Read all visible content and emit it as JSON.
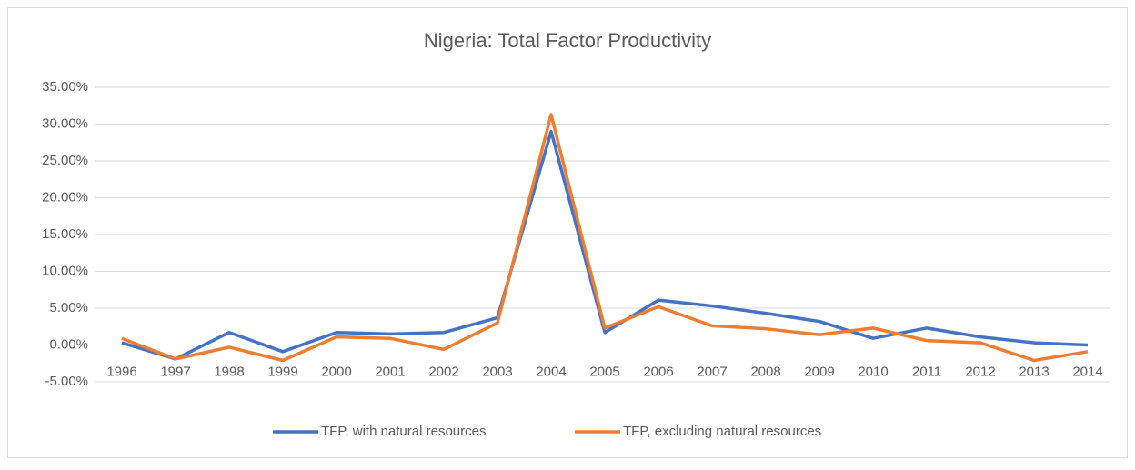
{
  "chart_data": {
    "type": "line",
    "title": "Nigeria: Total Factor Productivity",
    "categories": [
      "1996",
      "1997",
      "1998",
      "1999",
      "2000",
      "2001",
      "2002",
      "2003",
      "2004",
      "2005",
      "2006",
      "2007",
      "2008",
      "2009",
      "2010",
      "2011",
      "2012",
      "2013",
      "2014"
    ],
    "series": [
      {
        "name": "TFP, with natural resources",
        "color": "#4472c4",
        "values": [
          0.3,
          -1.9,
          1.7,
          -0.9,
          1.7,
          1.5,
          1.7,
          3.7,
          29.0,
          1.7,
          6.1,
          5.3,
          4.3,
          3.2,
          0.9,
          2.3,
          1.1,
          0.3,
          0.0
        ]
      },
      {
        "name": "TFP, excluding natural resources",
        "color": "#ed7d31",
        "values": [
          0.9,
          -1.9,
          -0.3,
          -2.1,
          1.1,
          0.9,
          -0.6,
          3.0,
          31.3,
          2.3,
          5.2,
          2.6,
          2.2,
          1.4,
          2.3,
          0.6,
          0.3,
          -2.1,
          -0.9
        ]
      }
    ],
    "ylim": [
      -5,
      35
    ],
    "yticks": [
      {
        "value": -5,
        "label": "-5.00%"
      },
      {
        "value": 0,
        "label": "0.00%"
      },
      {
        "value": 5,
        "label": "5.00%"
      },
      {
        "value": 10,
        "label": "10.00%"
      },
      {
        "value": 15,
        "label": "15.00%"
      },
      {
        "value": 20,
        "label": "20.00%"
      },
      {
        "value": 25,
        "label": "25.00%"
      },
      {
        "value": 30,
        "label": "30.00%"
      },
      {
        "value": 35,
        "label": "35.00%"
      }
    ],
    "grid": true,
    "legend": "bottom"
  }
}
